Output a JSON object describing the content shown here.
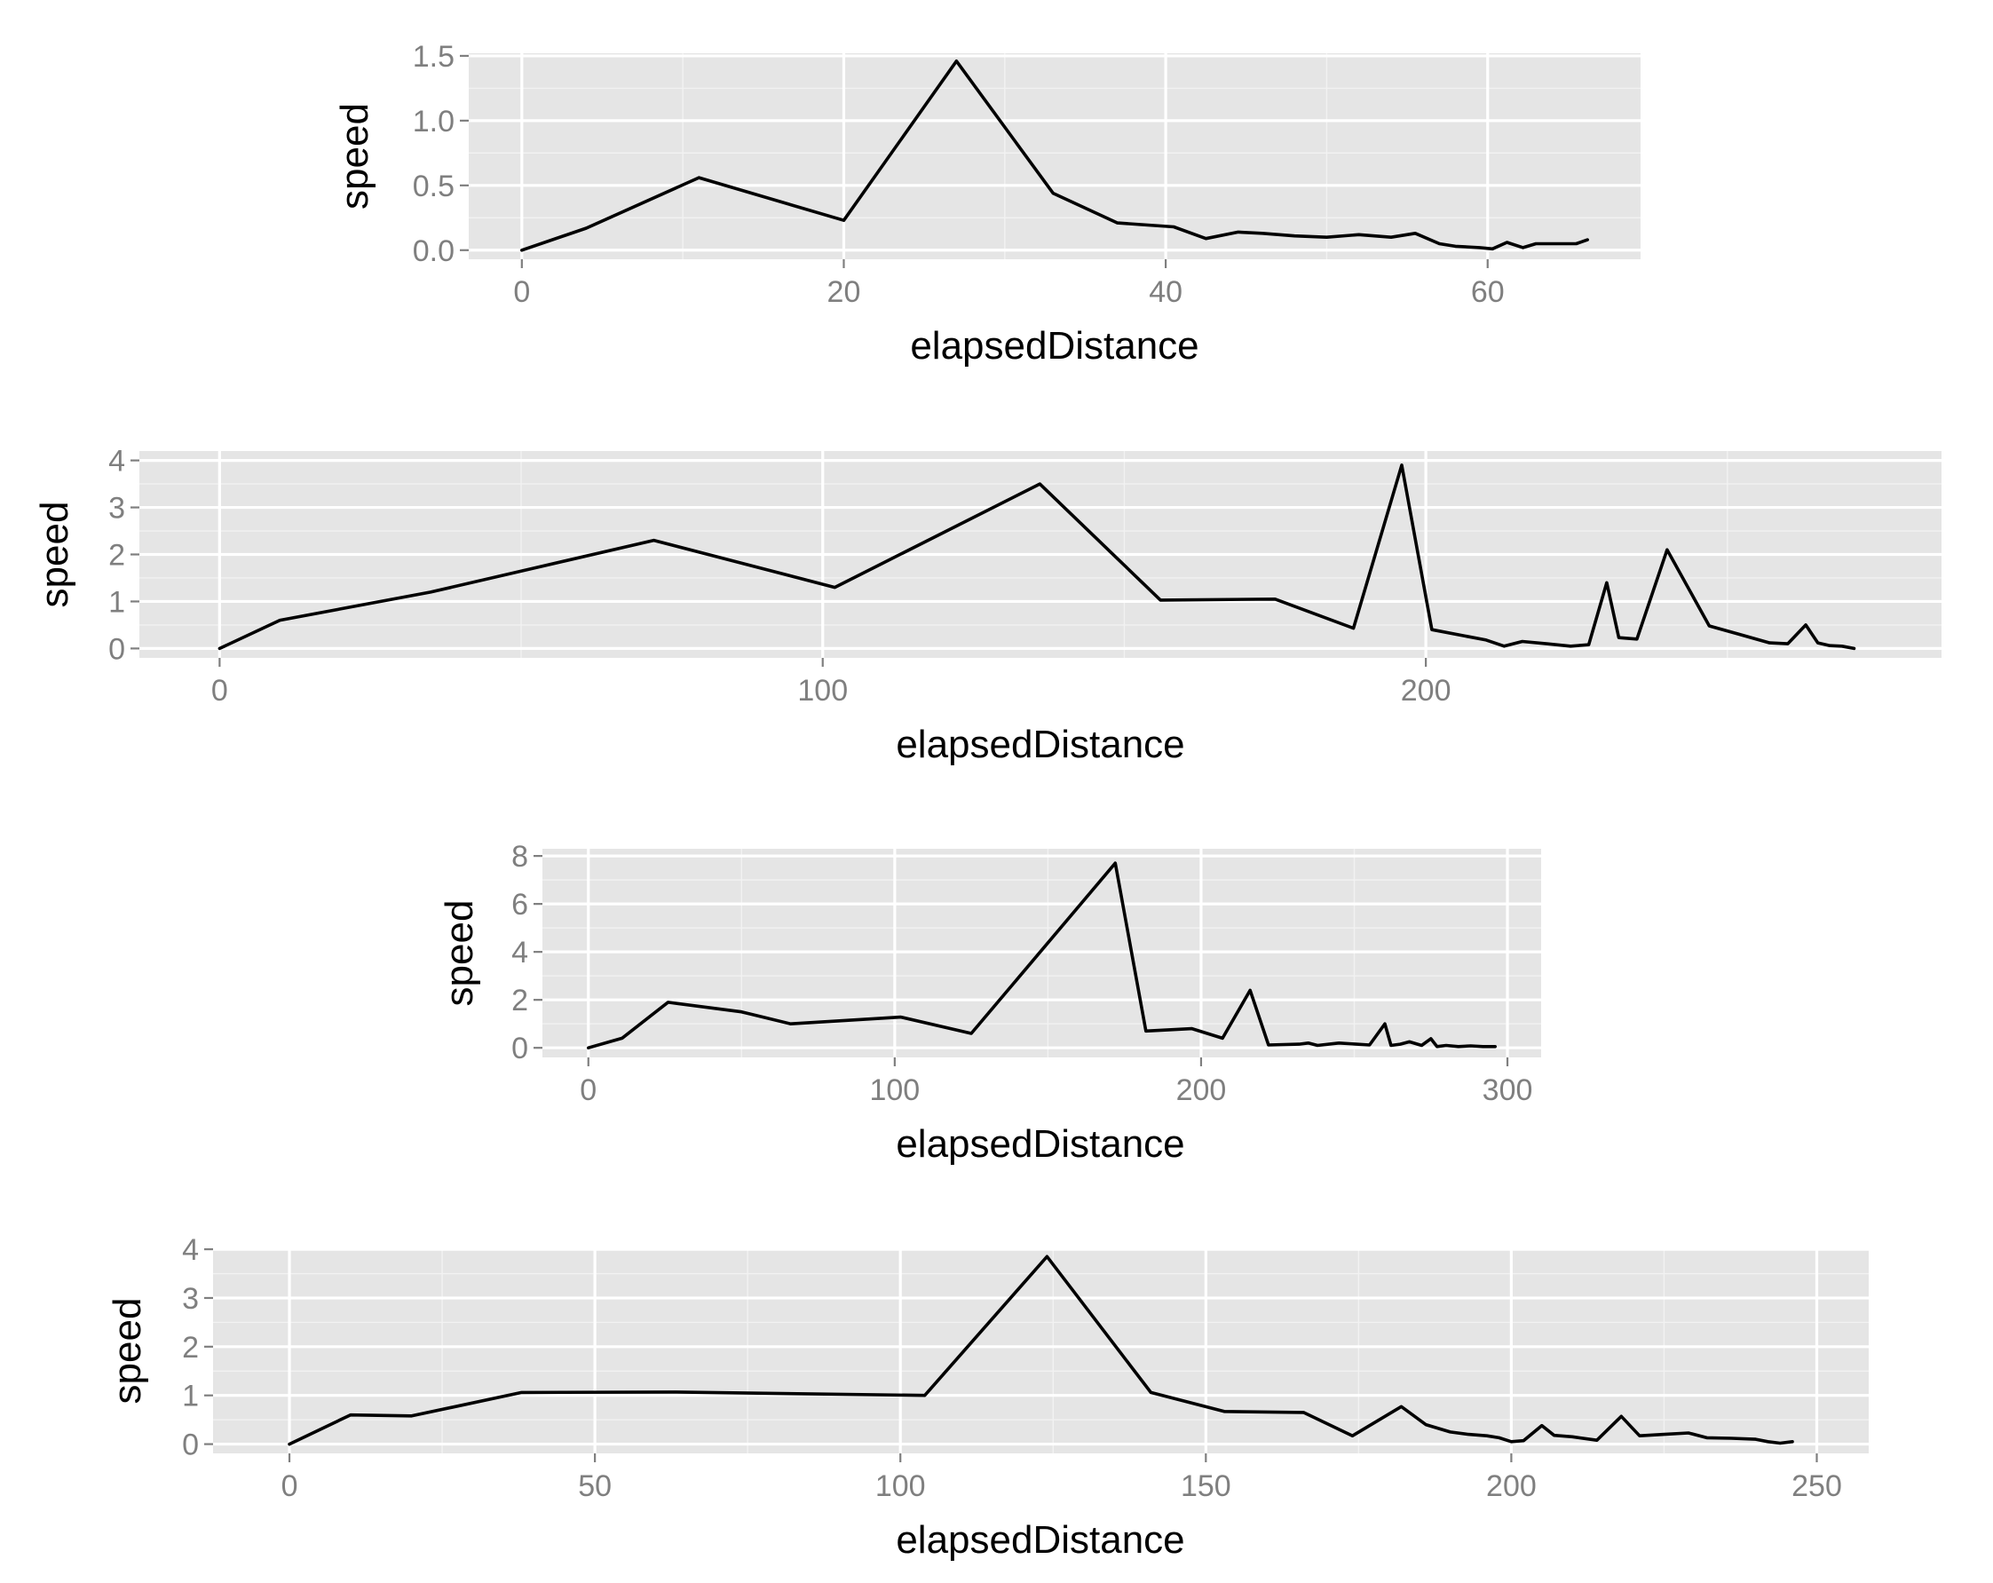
{
  "chart_data": [
    {
      "type": "line",
      "xlabel": "elapsedDistance",
      "ylabel": "speed",
      "xlim": [
        -3.3,
        69.5
      ],
      "ylim": [
        -0.07,
        1.52
      ],
      "xticks": [
        0,
        20,
        40,
        60
      ],
      "yticks": [
        0.0,
        0.5,
        1.0,
        1.5
      ],
      "xtick_labels": [
        "0",
        "20",
        "40",
        "60"
      ],
      "ytick_labels": [
        "0.0",
        "0.5",
        "1.0",
        "1.5"
      ],
      "grid": true,
      "series": [
        {
          "x": [
            0,
            4,
            11,
            20,
            27,
            33,
            37,
            40.5,
            42.5,
            44.5,
            46,
            48,
            50,
            52,
            54,
            55.5,
            57,
            58,
            59.5,
            60.3,
            61.2,
            62.2,
            63,
            64.5,
            65.5,
            66.2
          ],
          "y": [
            0.0,
            0.17,
            0.56,
            0.23,
            1.46,
            0.44,
            0.21,
            0.18,
            0.09,
            0.14,
            0.13,
            0.11,
            0.1,
            0.12,
            0.1,
            0.13,
            0.05,
            0.03,
            0.02,
            0.01,
            0.06,
            0.02,
            0.05,
            0.05,
            0.05,
            0.08
          ]
        }
      ]
    },
    {
      "type": "line",
      "xlabel": "elapsedDistance",
      "ylabel": "speed",
      "xlim": [
        -13.3,
        285.5
      ],
      "ylim": [
        -0.2,
        4.2
      ],
      "xticks": [
        0,
        100,
        200
      ],
      "yticks": [
        0,
        1,
        2,
        3,
        4
      ],
      "xtick_labels": [
        "0",
        "100",
        "200"
      ],
      "ytick_labels": [
        "0",
        "1",
        "2",
        "3",
        "4"
      ],
      "grid": true,
      "series": [
        {
          "x": [
            0,
            10,
            35,
            72,
            102,
            136,
            156,
            175,
            188,
            196,
            201,
            210,
            213,
            216,
            220,
            224,
            227,
            230,
            232,
            235,
            240,
            247,
            252,
            257,
            260,
            263,
            265,
            267,
            269,
            271
          ],
          "y": [
            0.0,
            0.6,
            1.2,
            2.3,
            1.3,
            3.5,
            1.03,
            1.05,
            0.43,
            3.9,
            0.4,
            0.18,
            0.05,
            0.15,
            0.1,
            0.05,
            0.08,
            1.4,
            0.23,
            0.2,
            2.1,
            0.48,
            0.3,
            0.12,
            0.1,
            0.5,
            0.12,
            0.06,
            0.05,
            0.0
          ]
        }
      ]
    },
    {
      "type": "line",
      "xlabel": "elapsedDistance",
      "ylabel": "speed",
      "xlim": [
        -15,
        311
      ],
      "ylim": [
        -0.4,
        8.3
      ],
      "xticks": [
        0,
        100,
        200,
        300
      ],
      "yticks": [
        0,
        2,
        4,
        6,
        8
      ],
      "xtick_labels": [
        "0",
        "100",
        "200",
        "300"
      ],
      "ytick_labels": [
        "0",
        "2",
        "4",
        "6",
        "8"
      ],
      "grid": true,
      "series": [
        {
          "x": [
            0,
            11,
            26,
            50,
            66,
            102,
            125,
            172,
            182,
            197,
            207,
            216,
            222,
            232,
            235,
            238,
            245,
            255,
            260,
            262,
            265,
            268,
            272,
            275,
            277,
            280,
            284,
            288,
            292,
            296
          ],
          "y": [
            0.0,
            0.4,
            1.9,
            1.5,
            1.0,
            1.28,
            0.6,
            7.7,
            0.7,
            0.8,
            0.4,
            2.4,
            0.12,
            0.15,
            0.2,
            0.1,
            0.2,
            0.12,
            1.0,
            0.1,
            0.15,
            0.25,
            0.1,
            0.38,
            0.05,
            0.1,
            0.05,
            0.08,
            0.05,
            0.05
          ]
        }
      ]
    },
    {
      "type": "line",
      "xlabel": "elapsedDistance",
      "ylabel": "speed",
      "xlim": [
        -12.5,
        258.5
      ],
      "ylim": [
        -0.19,
        4.02
      ],
      "xticks": [
        0,
        50,
        100,
        150,
        200,
        250
      ],
      "yticks": [
        0,
        1,
        2,
        3,
        4
      ],
      "xtick_labels": [
        "0",
        "50",
        "100",
        "150",
        "200",
        "250"
      ],
      "ytick_labels": [
        "0",
        "1",
        "2",
        "3",
        "4"
      ],
      "grid": true,
      "series": [
        {
          "x": [
            0,
            10,
            20,
            38,
            63,
            104,
            124,
            141,
            153,
            166,
            174,
            182,
            186,
            190,
            193,
            196,
            198,
            200,
            202,
            205,
            207,
            210,
            214,
            218,
            221,
            225,
            229,
            232,
            236,
            240,
            242,
            244,
            246
          ],
          "y": [
            0.0,
            0.6,
            0.58,
            1.06,
            1.07,
            1.0,
            3.85,
            1.06,
            0.67,
            0.65,
            0.17,
            0.77,
            0.4,
            0.25,
            0.2,
            0.17,
            0.13,
            0.05,
            0.07,
            0.38,
            0.18,
            0.15,
            0.08,
            0.57,
            0.17,
            0.2,
            0.23,
            0.13,
            0.12,
            0.1,
            0.05,
            0.02,
            0.05
          ]
        }
      ]
    }
  ]
}
